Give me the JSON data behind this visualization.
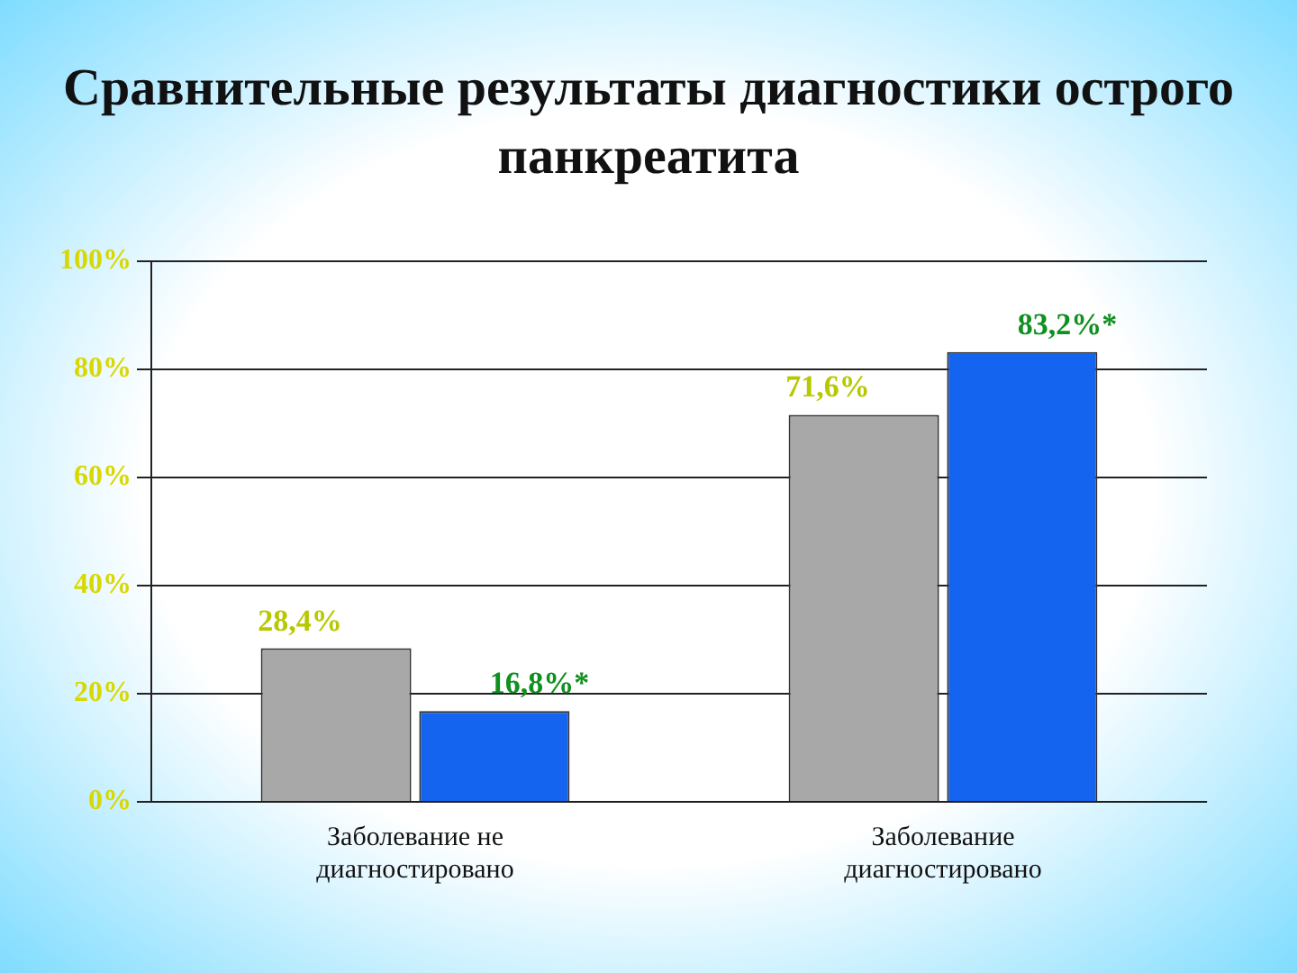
{
  "chart_data": {
    "type": "bar",
    "title": "Сравнительные результаты диагностики острого панкреатита",
    "categories": [
      "Заболевание не диагностировано",
      "Заболевание диагностировано"
    ],
    "series": [
      {
        "color": "#a8a8a8",
        "values": [
          28.4,
          71.6
        ],
        "value_labels": [
          "28,4%",
          "71,6%"
        ]
      },
      {
        "color": "#1464f0",
        "values": [
          16.8,
          83.2
        ],
        "value_labels": [
          "16,8%*",
          "83,2%*"
        ]
      }
    ],
    "ylim": [
      0,
      100
    ],
    "yticks": [
      {
        "value": 0,
        "label": "0%"
      },
      {
        "value": 20,
        "label": "20%"
      },
      {
        "value": 40,
        "label": "40%"
      },
      {
        "value": 60,
        "label": "60%"
      },
      {
        "value": 80,
        "label": "80%"
      },
      {
        "value": 100,
        "label": "100%"
      }
    ],
    "grid": "y"
  }
}
